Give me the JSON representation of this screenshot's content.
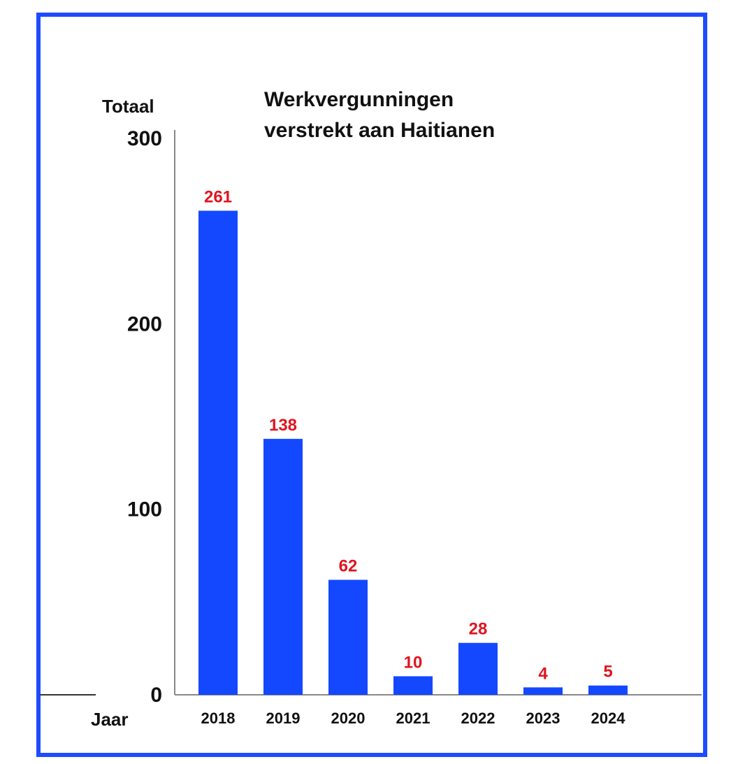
{
  "colors": {
    "frame": "#1e4bff",
    "bar": "#1448ff",
    "value_label": "#e0141e",
    "axis": "#888888",
    "text": "#111111"
  },
  "chart_data": {
    "type": "bar",
    "title_lines": [
      "Werkvergunningen",
      "verstrekt aan Haitianen"
    ],
    "ylabel": "Totaal",
    "xlabel": "Jaar",
    "categories": [
      "2018",
      "2019",
      "2020",
      "2021",
      "2022",
      "2023",
      "2024"
    ],
    "values": [
      261,
      138,
      62,
      10,
      28,
      4,
      5
    ],
    "value_labels": [
      "261",
      "138",
      "62",
      "10",
      "28",
      "4",
      "5"
    ],
    "ylim": [
      0,
      300
    ],
    "yticks": [
      "0",
      "100",
      "200",
      "300"
    ],
    "grid": false,
    "legend": "none"
  }
}
